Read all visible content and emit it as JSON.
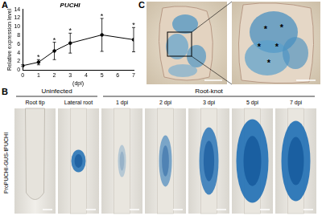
{
  "chart_data": {
    "type": "line",
    "title": "PUCHI",
    "x": [
      0,
      1,
      2,
      3,
      5,
      7
    ],
    "values": [
      1.0,
      1.8,
      4.4,
      6.2,
      8.1,
      7.0
    ],
    "errors": [
      0.2,
      0.6,
      2.0,
      2.3,
      3.8,
      2.8
    ],
    "annotations": [
      null,
      "*",
      "*",
      "*",
      "*",
      "*"
    ],
    "x_label": "(dpi)",
    "y_label": "Relative expression level",
    "xlim": [
      0,
      7
    ],
    "xticks": [
      0,
      1,
      2,
      3,
      4,
      5,
      6,
      7
    ],
    "ylim": [
      0,
      14
    ],
    "yticks": [
      0,
      2,
      4,
      6,
      8,
      10,
      12,
      14
    ],
    "color": "#000000",
    "marker": "circle",
    "grid": false
  },
  "figure": {
    "panel_labels": [
      "A",
      "B",
      "C"
    ],
    "panel_b": {
      "row_label": "ProPUCHI-GUS-tPUCHI",
      "groups": [
        {
          "title": "Uninfected",
          "images": [
            "Root tip",
            "Lateral root"
          ]
        },
        {
          "title": "Root-knot",
          "images": [
            "1 dpi",
            "2 dpi",
            "3 dpi",
            "5 dpi",
            "7 dpi"
          ]
        }
      ]
    },
    "panel_c": {
      "marks": [
        "*",
        "*",
        "*",
        "*",
        "*"
      ]
    }
  }
}
